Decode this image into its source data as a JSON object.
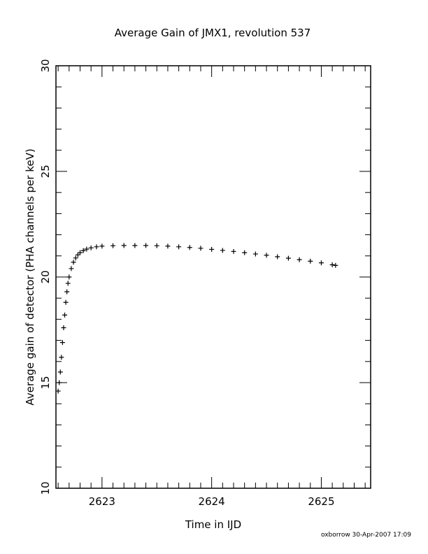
{
  "chart_data": {
    "type": "scatter",
    "title": "Average Gain of JMX1, revolution 537",
    "xlabel": "Time in IJD",
    "ylabel": "Average gain of detector (PHA channels per keV)",
    "xlim": [
      2622.58,
      2625.45
    ],
    "ylim": [
      10,
      30
    ],
    "x_ticks": [
      2623,
      2624,
      2625
    ],
    "y_ticks": [
      10,
      15,
      20,
      25,
      30
    ],
    "marker": "plus",
    "grid": false,
    "series": [
      {
        "points": [
          [
            2622.6,
            14.6
          ],
          [
            2622.61,
            15.0
          ],
          [
            2622.62,
            15.5
          ],
          [
            2622.63,
            16.2
          ],
          [
            2622.64,
            16.9
          ],
          [
            2622.65,
            17.6
          ],
          [
            2622.66,
            18.2
          ],
          [
            2622.67,
            18.8
          ],
          [
            2622.68,
            19.3
          ],
          [
            2622.69,
            19.7
          ],
          [
            2622.7,
            20.0
          ],
          [
            2622.72,
            20.4
          ],
          [
            2622.74,
            20.7
          ],
          [
            2622.76,
            20.9
          ],
          [
            2622.78,
            21.05
          ],
          [
            2622.8,
            21.15
          ],
          [
            2622.83,
            21.25
          ],
          [
            2622.86,
            21.32
          ],
          [
            2622.9,
            21.38
          ],
          [
            2622.95,
            21.43
          ],
          [
            2623.0,
            21.46
          ],
          [
            2623.1,
            21.48
          ],
          [
            2623.2,
            21.49
          ],
          [
            2623.3,
            21.49
          ],
          [
            2623.4,
            21.49
          ],
          [
            2623.5,
            21.48
          ],
          [
            2623.6,
            21.46
          ],
          [
            2623.7,
            21.43
          ],
          [
            2623.8,
            21.4
          ],
          [
            2623.9,
            21.36
          ],
          [
            2624.0,
            21.31
          ],
          [
            2624.1,
            21.26
          ],
          [
            2624.2,
            21.21
          ],
          [
            2624.3,
            21.15
          ],
          [
            2624.4,
            21.09
          ],
          [
            2624.5,
            21.03
          ],
          [
            2624.6,
            20.96
          ],
          [
            2624.7,
            20.89
          ],
          [
            2624.8,
            20.82
          ],
          [
            2624.9,
            20.75
          ],
          [
            2625.0,
            20.67
          ],
          [
            2625.1,
            20.58
          ],
          [
            2625.13,
            20.55
          ]
        ]
      }
    ]
  },
  "footer": "oxborrow 30-Apr-2007 17:09"
}
